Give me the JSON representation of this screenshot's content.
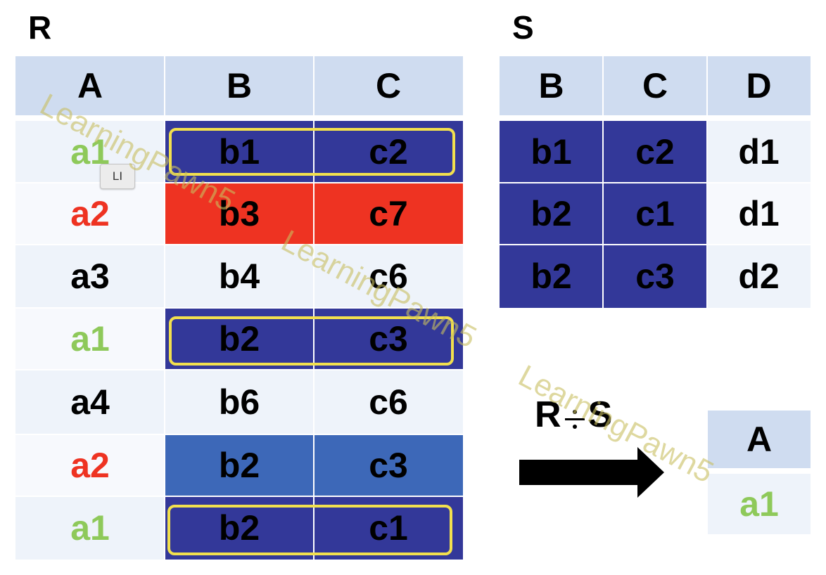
{
  "colors": {
    "header": "#cfdcf0",
    "navy": "#333899",
    "red": "#ee3322",
    "blue": "#3d68b8",
    "green_text": "#8ec95a",
    "red_text": "#ee3322",
    "highlight_border": "#f2e04e",
    "watermark": "#c8be5f"
  },
  "r": {
    "title": "R",
    "headers": [
      "A",
      "B",
      "C"
    ],
    "rows": [
      {
        "a": "a1",
        "b": "b1",
        "c": "c2"
      },
      {
        "a": "a2",
        "b": "b3",
        "c": "c7"
      },
      {
        "a": "a3",
        "b": "b4",
        "c": "c6"
      },
      {
        "a": "a1",
        "b": "b2",
        "c": "c3"
      },
      {
        "a": "a4",
        "b": "b6",
        "c": "c6"
      },
      {
        "a": "a2",
        "b": "b2",
        "c": "c3"
      },
      {
        "a": "a1",
        "b": "b2",
        "c": "c1"
      }
    ]
  },
  "s": {
    "title": "S",
    "headers": [
      "B",
      "C",
      "D"
    ],
    "rows": [
      {
        "b": "b1",
        "c": "c2",
        "d": "d1"
      },
      {
        "b": "b2",
        "c": "c1",
        "d": "d1"
      },
      {
        "b": "b2",
        "c": "c3",
        "d": "d2"
      }
    ]
  },
  "operation": {
    "r": "R",
    "s": "S",
    "arrow_icon": "right-arrow-icon",
    "divide_icon": "division-sign-icon"
  },
  "result": {
    "header": "A",
    "value": "a1"
  },
  "tooltip": "LI",
  "watermark": "LearningPawn5"
}
